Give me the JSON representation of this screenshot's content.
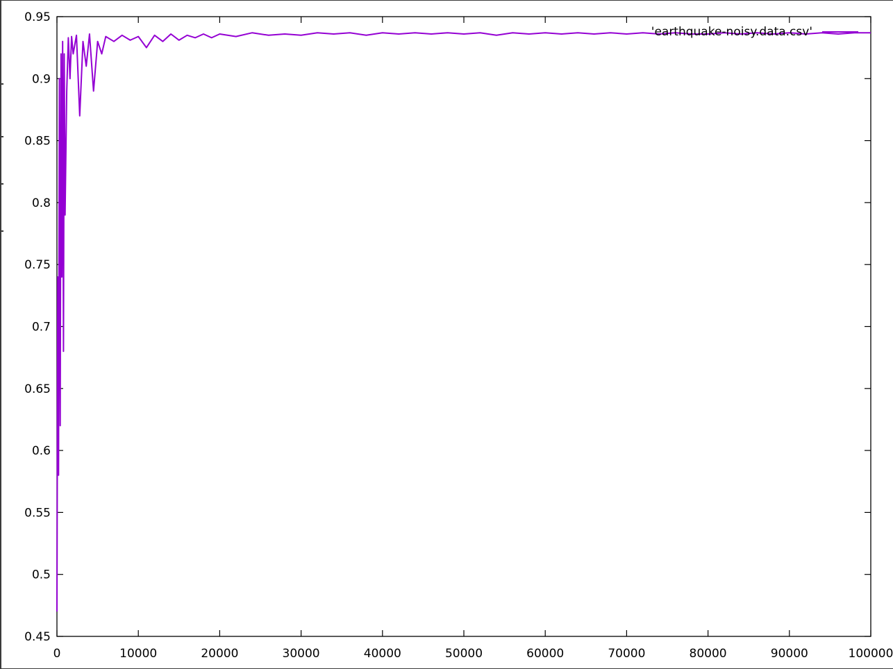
{
  "chart_data": {
    "type": "line",
    "title": "",
    "xlabel": "",
    "ylabel": "",
    "xlim": [
      0,
      100000
    ],
    "ylim": [
      0.45,
      0.95
    ],
    "x_ticks": [
      0,
      10000,
      20000,
      30000,
      40000,
      50000,
      60000,
      70000,
      80000,
      90000,
      100000
    ],
    "x_tick_labels": [
      "0",
      "10000",
      "20000",
      "30000",
      "40000",
      "50000",
      "60000",
      "70000",
      "80000",
      "90000",
      "100000"
    ],
    "y_ticks": [
      0.45,
      0.5,
      0.55,
      0.6,
      0.65,
      0.7,
      0.75,
      0.8,
      0.85,
      0.9,
      0.95
    ],
    "y_tick_labels": [
      "0.45",
      "0.5",
      "0.55",
      "0.6",
      "0.65",
      "0.7",
      "0.75",
      "0.8",
      "0.85",
      "0.9",
      "0.95"
    ],
    "grid": false,
    "legend": {
      "position": "top-right"
    },
    "series": [
      {
        "name": "'earthquake-noisy.data.csv'",
        "color": "#9400d3",
        "x": [
          0,
          100,
          200,
          300,
          400,
          500,
          600,
          700,
          800,
          900,
          1000,
          1200,
          1400,
          1600,
          1800,
          2000,
          2400,
          2800,
          3200,
          3600,
          4000,
          4500,
          5000,
          5500,
          6000,
          7000,
          8000,
          9000,
          10000,
          11000,
          12000,
          13000,
          14000,
          15000,
          16000,
          17000,
          18000,
          19000,
          20000,
          22000,
          24000,
          26000,
          28000,
          30000,
          32000,
          34000,
          36000,
          38000,
          40000,
          42000,
          44000,
          46000,
          48000,
          50000,
          52000,
          54000,
          56000,
          58000,
          60000,
          62000,
          64000,
          66000,
          68000,
          70000,
          72000,
          74000,
          76000,
          78000,
          80000,
          82000,
          84000,
          86000,
          88000,
          90000,
          92000,
          94000,
          96000,
          98000,
          100000
        ],
        "y": [
          0.47,
          0.74,
          0.58,
          0.9,
          0.62,
          0.92,
          0.74,
          0.93,
          0.68,
          0.92,
          0.79,
          0.89,
          0.933,
          0.9,
          0.934,
          0.92,
          0.935,
          0.87,
          0.93,
          0.91,
          0.936,
          0.89,
          0.93,
          0.92,
          0.934,
          0.93,
          0.935,
          0.931,
          0.934,
          0.925,
          0.935,
          0.93,
          0.936,
          0.931,
          0.935,
          0.933,
          0.936,
          0.933,
          0.936,
          0.934,
          0.937,
          0.935,
          0.936,
          0.935,
          0.937,
          0.936,
          0.937,
          0.935,
          0.937,
          0.936,
          0.937,
          0.936,
          0.937,
          0.936,
          0.937,
          0.935,
          0.937,
          0.936,
          0.937,
          0.936,
          0.937,
          0.936,
          0.937,
          0.936,
          0.937,
          0.936,
          0.937,
          0.936,
          0.936,
          0.937,
          0.936,
          0.937,
          0.936,
          0.937,
          0.936,
          0.937,
          0.936,
          0.937,
          0.937
        ]
      }
    ]
  }
}
